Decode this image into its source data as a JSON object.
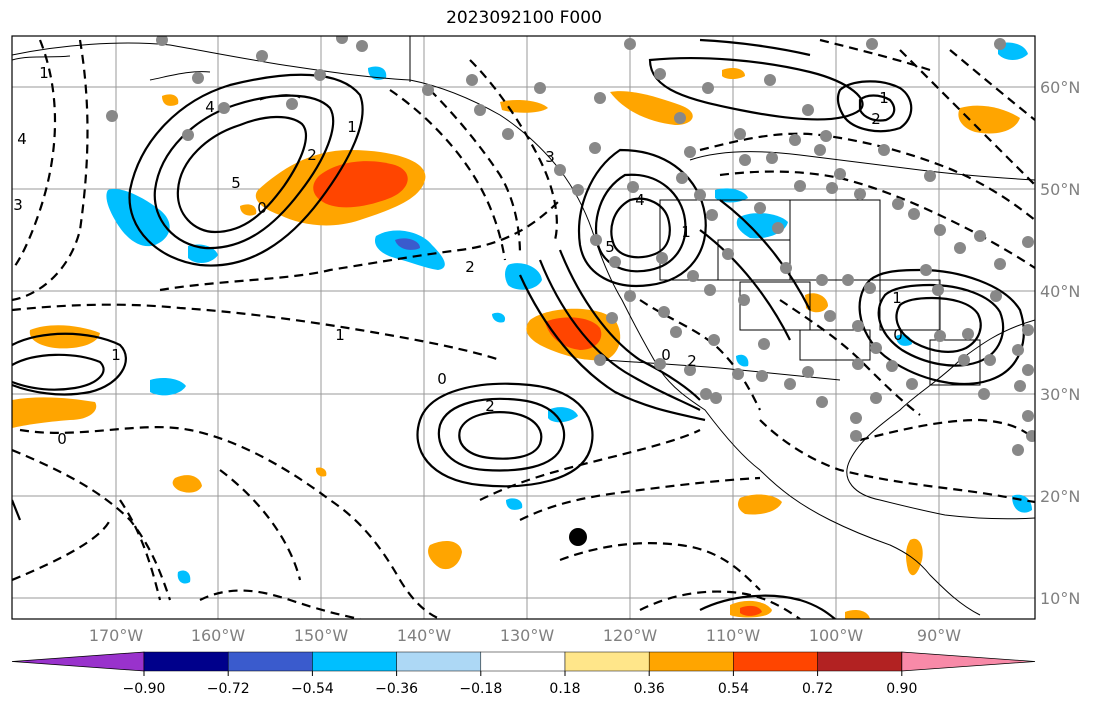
{
  "title": "2023092100 F000",
  "longitude_ticks": [
    "170°W",
    "160°W",
    "150°W",
    "140°W",
    "130°W",
    "120°W",
    "110°W",
    "100°W",
    "90°W"
  ],
  "latitude_ticks": [
    "60°N",
    "50°N",
    "40°N",
    "30°N",
    "20°N",
    "10°N"
  ],
  "colorbar": {
    "labels": [
      "−0.90",
      "−0.72",
      "−0.54",
      "−0.36",
      "−0.18",
      "0.18",
      "0.36",
      "0.54",
      "0.72",
      "0.90"
    ],
    "colors": [
      "#9932cc",
      "#00008b",
      "#3a5bcd",
      "#00bfff",
      "#add8f5",
      "#ffffff",
      "#ffe68a",
      "#ffa500",
      "#ff4500",
      "#b22222",
      "#f88aa8"
    ]
  },
  "contour_labels": [
    {
      "text": "4"
    },
    {
      "text": "5"
    },
    {
      "text": "1"
    },
    {
      "text": "2"
    },
    {
      "text": "3"
    },
    {
      "text": "0"
    },
    {
      "text": "1"
    },
    {
      "text": "4"
    },
    {
      "text": "5"
    },
    {
      "text": "2"
    },
    {
      "text": "1"
    },
    {
      "text": "2"
    },
    {
      "text": "0"
    },
    {
      "text": "1"
    },
    {
      "text": "2"
    },
    {
      "text": "1"
    },
    {
      "text": "0"
    },
    {
      "text": "2"
    },
    {
      "text": "0"
    },
    {
      "text": "1"
    },
    {
      "text": "4"
    },
    {
      "text": "3"
    },
    {
      "text": "0"
    },
    {
      "text": "1"
    }
  ],
  "fields": {
    "contours": "solid = positive, dashed = negative",
    "shading": "anomaly fill",
    "markers": "grey dots = stations, black dot = center"
  }
}
